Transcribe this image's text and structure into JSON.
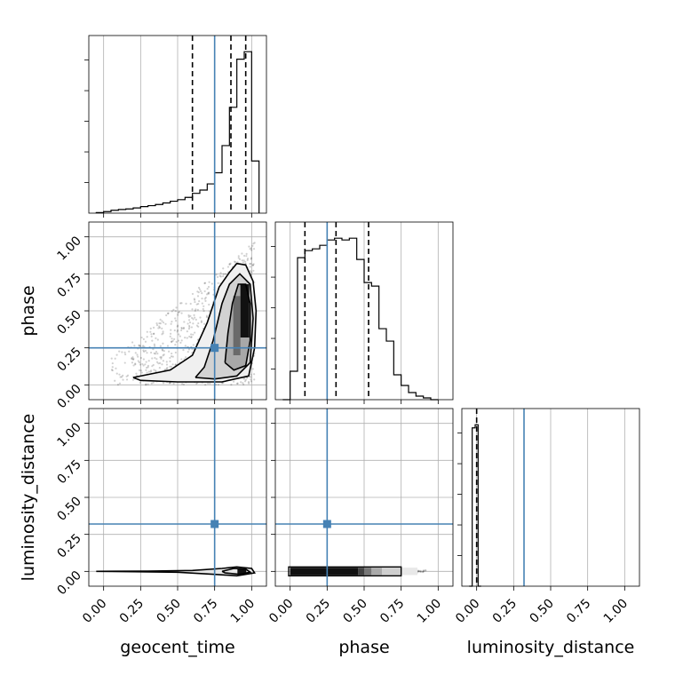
{
  "chart_data": {
    "type": "corner",
    "parameters": [
      "geocent_time",
      "phase",
      "luminosity_distance"
    ],
    "axis_labels": [
      "geocent_time",
      "phase",
      "luminosity_distance"
    ],
    "axis_range": [
      -0.1,
      1.1
    ],
    "ticks": [
      0.0,
      0.25,
      0.5,
      0.75,
      1.0
    ],
    "tick_labels": [
      "0.00",
      "0.25",
      "0.50",
      "0.75",
      "1.00"
    ],
    "grid": true,
    "truth_color": "#4682b4",
    "truths": {
      "geocent_time": 0.75,
      "phase": 0.25,
      "luminosity_distance": 0.32
    },
    "histograms": {
      "geocent_time": {
        "bin_edges": [
          -0.05,
          0.0,
          0.05,
          0.1,
          0.15,
          0.2,
          0.25,
          0.3,
          0.35,
          0.4,
          0.45,
          0.5,
          0.55,
          0.6,
          0.65,
          0.7,
          0.75,
          0.8,
          0.85,
          0.9,
          0.95,
          1.0,
          1.05
        ],
        "counts": [
          0.3,
          0.8,
          1.5,
          1.9,
          2.2,
          2.7,
          3.4,
          3.9,
          4.5,
          5.3,
          6.2,
          7.0,
          8.2,
          10.3,
          12.0,
          15.2,
          21.0,
          35.1,
          55.0,
          80.0,
          83.9,
          27.1
        ]
      },
      "phase": {
        "bin_edges": [
          -0.05,
          0.0,
          0.05,
          0.1,
          0.15,
          0.2,
          0.25,
          0.3,
          0.35,
          0.4,
          0.45,
          0.5,
          0.55,
          0.6,
          0.65,
          0.7,
          0.75,
          0.8,
          0.85,
          0.9,
          0.95,
          1.0
        ],
        "counts": [
          0,
          16,
          80,
          84,
          85,
          87,
          90,
          91,
          90,
          91,
          79,
          66,
          64,
          40,
          33,
          14,
          8,
          4,
          2,
          1,
          0
        ]
      },
      "luminosity_distance": {
        "bin_edges": [
          -0.05,
          -0.03,
          -0.01,
          0.01,
          0.03
        ],
        "counts": [
          0,
          100,
          102,
          0
        ]
      }
    },
    "quantiles": {
      "geocent_time": [
        0.6,
        0.86,
        0.96
      ],
      "phase": [
        0.1,
        0.31,
        0.53
      ],
      "luminosity_distance": [
        0.0
      ]
    },
    "contours": {
      "geocent_time_vs_phase": [
        [
          [
            0.2,
            0.05
          ],
          [
            0.45,
            0.1
          ],
          [
            0.6,
            0.2
          ],
          [
            0.7,
            0.42
          ],
          [
            0.78,
            0.66
          ],
          [
            0.85,
            0.76
          ],
          [
            0.9,
            0.82
          ],
          [
            0.96,
            0.81
          ],
          [
            1.01,
            0.7
          ],
          [
            1.03,
            0.5
          ],
          [
            1.02,
            0.25
          ],
          [
            0.98,
            0.06
          ],
          [
            0.8,
            0.02
          ],
          [
            0.5,
            0.02
          ],
          [
            0.25,
            0.03
          ],
          [
            0.2,
            0.05
          ]
        ],
        [
          [
            0.62,
            0.05
          ],
          [
            0.68,
            0.12
          ],
          [
            0.74,
            0.3
          ],
          [
            0.8,
            0.55
          ],
          [
            0.85,
            0.68
          ],
          [
            0.92,
            0.75
          ],
          [
            0.99,
            0.68
          ],
          [
            1.01,
            0.45
          ],
          [
            0.99,
            0.15
          ],
          [
            0.9,
            0.06
          ],
          [
            0.75,
            0.04
          ],
          [
            0.62,
            0.05
          ]
        ],
        [
          [
            0.82,
            0.15
          ],
          [
            0.84,
            0.35
          ],
          [
            0.87,
            0.55
          ],
          [
            0.91,
            0.68
          ],
          [
            0.96,
            0.68
          ],
          [
            0.99,
            0.55
          ],
          [
            0.99,
            0.3
          ],
          [
            0.96,
            0.13
          ],
          [
            0.88,
            0.1
          ],
          [
            0.82,
            0.15
          ]
        ]
      ],
      "geocent_time_vs_luminosity_distance": [
        [
          [
            -0.05,
            0.0
          ],
          [
            0.3,
            0.002
          ],
          [
            0.6,
            0.006
          ],
          [
            0.8,
            0.02
          ],
          [
            0.9,
            0.03
          ],
          [
            1.0,
            0.02
          ],
          [
            1.02,
            -0.01
          ],
          [
            0.9,
            -0.03
          ],
          [
            0.75,
            -0.02
          ],
          [
            0.5,
            -0.006
          ],
          [
            0.2,
            -0.002
          ],
          [
            -0.05,
            0.0
          ]
        ],
        [
          [
            0.8,
            0.0
          ],
          [
            0.88,
            0.02
          ],
          [
            0.96,
            0.015
          ],
          [
            0.99,
            -0.005
          ],
          [
            0.92,
            -0.02
          ],
          [
            0.82,
            -0.01
          ],
          [
            0.8,
            0.0
          ]
        ]
      ]
    },
    "density_peaks": {
      "geocent_time_vs_phase": {
        "x": 0.96,
        "y": 0.5
      },
      "geocent_time_vs_luminosity_distance": {
        "x": 0.94,
        "y": 0.0
      },
      "phase_vs_luminosity_distance": {
        "x": 0.2,
        "y": 0.0
      }
    }
  }
}
